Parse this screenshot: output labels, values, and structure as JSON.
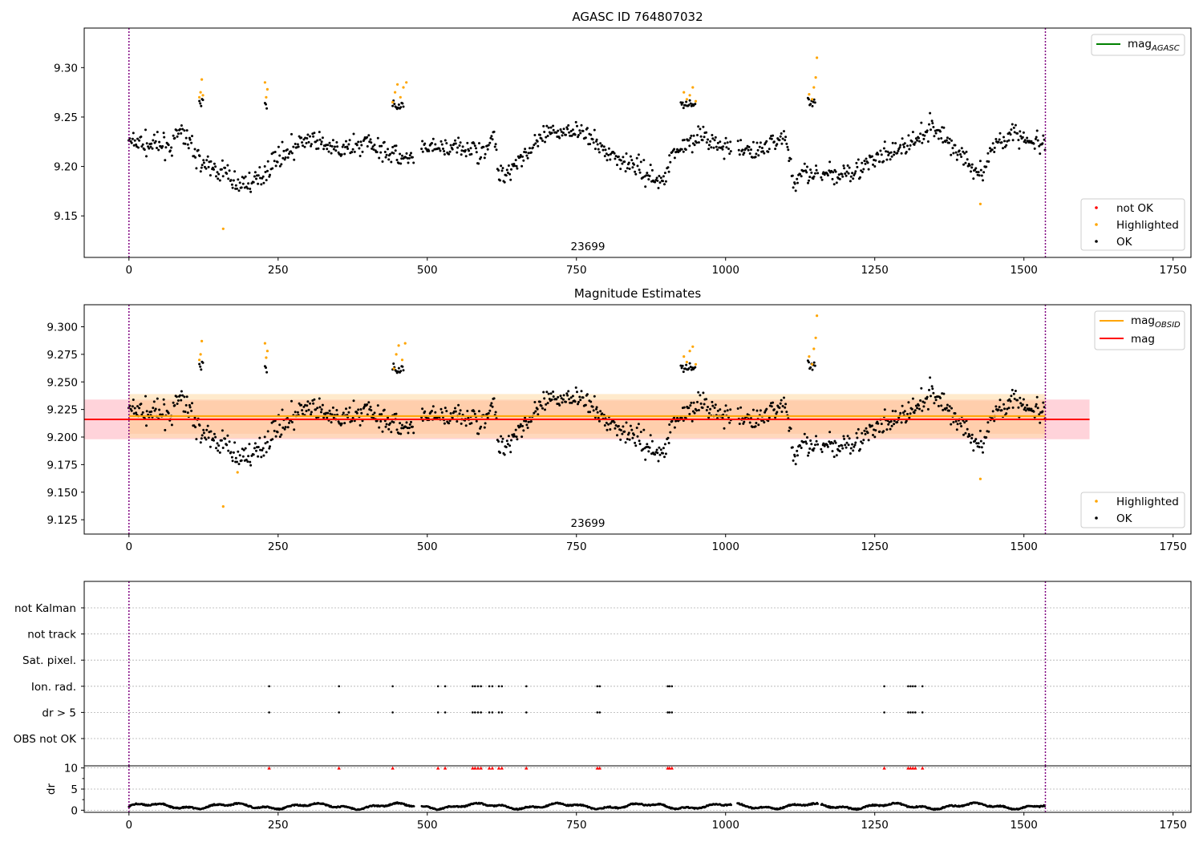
{
  "chart_data": [
    {
      "type": "scatter",
      "title": "AGASC ID 764807032",
      "annotation": "23699",
      "xlim": [
        -75,
        1780
      ],
      "ylim": [
        9.108,
        9.34
      ],
      "xticks": [
        0,
        250,
        500,
        750,
        1000,
        1250,
        1500,
        1750
      ],
      "yticks": [
        "9.15",
        "9.20",
        "9.25",
        "9.30"
      ],
      "vlines": [
        0,
        1536
      ],
      "series": [
        {
          "name": "not OK",
          "color": "#ff0000",
          "values": []
        },
        {
          "name": "Highlighted",
          "color": "#ffa500",
          "values": [
            [
              118,
              9.27
            ],
            [
              120,
              9.275
            ],
            [
              122,
              9.288
            ],
            [
              124,
              9.272
            ],
            [
              228,
              9.285
            ],
            [
              230,
              9.27
            ],
            [
              232,
              9.278
            ],
            [
              442,
              9.265
            ],
            [
              446,
              9.275
            ],
            [
              450,
              9.283
            ],
            [
              455,
              9.27
            ],
            [
              460,
              9.28
            ],
            [
              465,
              9.285
            ],
            [
              930,
              9.275
            ],
            [
              935,
              9.268
            ],
            [
              940,
              9.272
            ],
            [
              945,
              9.28
            ],
            [
              950,
              9.266
            ],
            [
              1140,
              9.273
            ],
            [
              1145,
              9.268
            ],
            [
              1148,
              9.28
            ],
            [
              1151,
              9.29
            ],
            [
              1153,
              9.31
            ],
            [
              158,
              9.137
            ],
            [
              1427,
              9.162
            ]
          ]
        },
        {
          "name": "OK",
          "color": "#000000",
          "values": []
        }
      ],
      "line_series": [
        {
          "name": "mag_AGASC",
          "color": "#008000",
          "values": []
        }
      ],
      "legends": [
        {
          "position": "top-right",
          "entries": [
            "mag_AGASC"
          ]
        },
        {
          "position": "bottom-right",
          "entries": [
            "not OK",
            "Highlighted",
            "OK"
          ]
        }
      ]
    },
    {
      "type": "scatter",
      "title": "Magnitude Estimates",
      "annotation": "23699",
      "xlim": [
        -75,
        1780
      ],
      "ylim": [
        9.112,
        9.32
      ],
      "xticks": [
        0,
        250,
        500,
        750,
        1000,
        1250,
        1500,
        1750
      ],
      "yticks": [
        "9.125",
        "9.150",
        "9.175",
        "9.200",
        "9.225",
        "9.250",
        "9.275",
        "9.300"
      ],
      "vlines": [
        0,
        1536
      ],
      "bands": [
        {
          "name": "mag range",
          "color": "#ffb6c1",
          "x": [
            -75,
            1610
          ],
          "y": [
            9.198,
            9.234
          ]
        },
        {
          "name": "mag_OBSID range",
          "color": "#ffdcaa",
          "x": [
            0,
            1536
          ],
          "y": [
            9.199,
            9.239
          ]
        },
        {
          "name": "mag_OBSID inner",
          "color": "#ffc8a0",
          "x": [
            0,
            1536
          ],
          "y": [
            9.203,
            9.233
          ]
        }
      ],
      "line_series": [
        {
          "name": "mag_OBSID",
          "color": "#ffa500",
          "x": [
            0,
            1536
          ],
          "y": 9.219
        },
        {
          "name": "mag",
          "color": "#ff0000",
          "x": [
            -75,
            1610
          ],
          "y": 9.216
        }
      ],
      "series": [
        {
          "name": "Highlighted",
          "color": "#ffa500",
          "values": [
            [
              118,
              9.27
            ],
            [
              120,
              9.275
            ],
            [
              122,
              9.287
            ],
            [
              228,
              9.285
            ],
            [
              230,
              9.272
            ],
            [
              232,
              9.278
            ],
            [
              444,
              9.262
            ],
            [
              448,
              9.275
            ],
            [
              452,
              9.283
            ],
            [
              458,
              9.27
            ],
            [
              463,
              9.285
            ],
            [
              930,
              9.273
            ],
            [
              935,
              9.268
            ],
            [
              940,
              9.278
            ],
            [
              945,
              9.282
            ],
            [
              950,
              9.266
            ],
            [
              1140,
              9.273
            ],
            [
              1145,
              9.266
            ],
            [
              1148,
              9.28
            ],
            [
              1151,
              9.29
            ],
            [
              1153,
              9.31
            ],
            [
              158,
              9.137
            ],
            [
              182,
              9.168
            ],
            [
              1427,
              9.162
            ]
          ]
        },
        {
          "name": "OK",
          "color": "#000000",
          "values": []
        }
      ],
      "legends": [
        {
          "position": "top-right",
          "entries": [
            "mag_OBSID",
            "mag"
          ]
        },
        {
          "position": "bottom-right",
          "entries": [
            "Highlighted",
            "OK"
          ]
        }
      ]
    },
    {
      "type": "scatter",
      "title": "",
      "xlim": [
        -75,
        1780
      ],
      "vlines": [
        0,
        1536
      ],
      "categories": [
        "not Kalman",
        "not track",
        "Sat. pixel.",
        "Ion. rad.",
        "dr > 5",
        "OBS not OK"
      ],
      "flag_x": [
        235,
        352,
        442,
        518,
        530,
        576,
        580,
        585,
        590,
        604,
        609,
        620,
        625,
        666,
        785,
        789,
        903,
        906,
        910,
        1266,
        1306,
        1310,
        1314,
        1318,
        1330
      ],
      "flag_rows": [
        "Ion. rad.",
        "dr > 5"
      ]
    },
    {
      "type": "line",
      "title": "",
      "xlim": [
        -75,
        1780
      ],
      "xticks": [
        0,
        250,
        500,
        750,
        1000,
        1250,
        1500,
        1750
      ],
      "ylim": [
        -0.5,
        10.5
      ],
      "yticks": [
        "0",
        "5",
        "10"
      ],
      "ylabel": "dr",
      "vlines": [
        0,
        1536
      ],
      "clipped_marker_y": 10,
      "clipped_x": [
        235,
        352,
        442,
        518,
        530,
        576,
        580,
        585,
        590,
        604,
        609,
        620,
        625,
        666,
        785,
        789,
        903,
        906,
        910,
        1266,
        1306,
        1310,
        1314,
        1318,
        1330
      ],
      "x_start": 0,
      "x_end": 1536
    }
  ]
}
